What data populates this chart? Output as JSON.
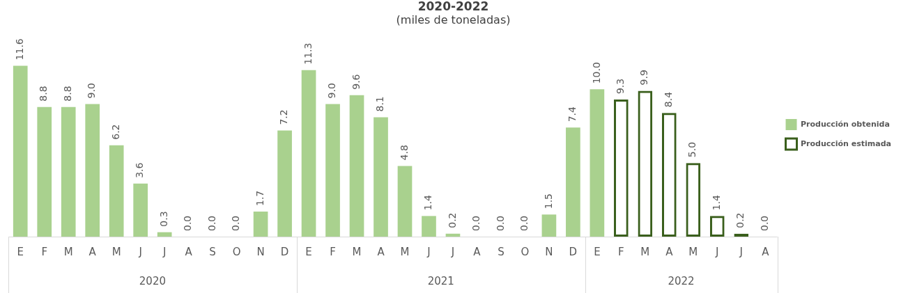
{
  "chart_data": {
    "type": "bar",
    "title": "2020-2022",
    "subtitle": "(miles de toneladas)",
    "categories": [
      "E",
      "F",
      "M",
      "A",
      "M",
      "J",
      "J",
      "A",
      "S",
      "O",
      "N",
      "D",
      "E",
      "F",
      "M",
      "A",
      "M",
      "J",
      "J",
      "A",
      "S",
      "O",
      "N",
      "D",
      "E",
      "F",
      "M",
      "A",
      "M",
      "J",
      "J",
      "A"
    ],
    "series": [
      {
        "name": "Producción obtenida",
        "color": "#a9d18e",
        "values": [
          11.6,
          8.8,
          8.8,
          9.0,
          6.2,
          3.6,
          0.3,
          0.0,
          0.0,
          0.0,
          1.7,
          7.2,
          11.3,
          9.0,
          9.6,
          8.1,
          4.8,
          1.4,
          0.2,
          0.0,
          0.0,
          0.0,
          1.5,
          7.4,
          10.0,
          null,
          null,
          null,
          null,
          null,
          null,
          null
        ],
        "value_labels": [
          "11.6",
          "8.8",
          "8.8",
          "9.0",
          "6.2",
          "3.6",
          "0.3",
          "0.0",
          "0.0",
          "0.0",
          "1.7",
          "7.2",
          "11.3",
          "9.0",
          "9.6",
          "8.1",
          "4.8",
          "1.4",
          "0.2",
          "0.0",
          "0.0",
          "0.0",
          "1.5",
          "7.4",
          "10.0",
          null,
          null,
          null,
          null,
          null,
          null,
          null
        ]
      },
      {
        "name": "Producción estimada",
        "color": "#3a5f1c",
        "values": [
          null,
          null,
          null,
          null,
          null,
          null,
          null,
          null,
          null,
          null,
          null,
          null,
          null,
          null,
          null,
          null,
          null,
          null,
          null,
          null,
          null,
          null,
          null,
          null,
          null,
          9.3,
          9.9,
          8.4,
          5.0,
          1.4,
          0.2,
          0.0
        ],
        "value_labels": [
          null,
          null,
          null,
          null,
          null,
          null,
          null,
          null,
          null,
          null,
          null,
          null,
          null,
          null,
          null,
          null,
          null,
          null,
          null,
          null,
          null,
          null,
          null,
          null,
          null,
          "9.3",
          "9.9",
          "8.4",
          "5.0",
          "1.4",
          "0.2",
          "0.0"
        ]
      }
    ],
    "annotations": [
      "2020",
      "2021",
      "2022"
    ],
    "legend": "right",
    "grid": false
  }
}
